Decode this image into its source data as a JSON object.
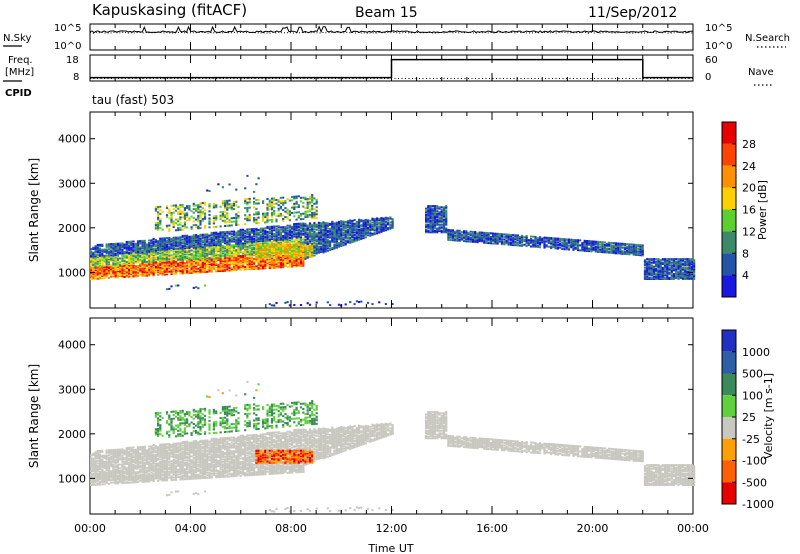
{
  "header": {
    "station": "Kapuskasing (fitACF)",
    "beam": "Beam 15",
    "date": "11/Sep/2012"
  },
  "noise_panel": {
    "left_label": "N.Sky",
    "left_ticks": [
      "10^5",
      "10^0"
    ],
    "right_label": "N.Search",
    "right_ticks": [
      "10^5",
      "10^0"
    ]
  },
  "freq_panel": {
    "left_label_1": "Freq.",
    "left_label_2": "[MHz]",
    "left_ticks": [
      "18",
      "8"
    ],
    "right_label": "Nave",
    "right_ticks": [
      "60",
      "0"
    ],
    "cpid_label": "CPID",
    "cpid_text": "tau (fast) 503"
  },
  "colors": {
    "power": [
      "#1818e0",
      "#2255a8",
      "#3c8a6a",
      "#5cd030",
      "#ffd000",
      "#ff9000",
      "#ff4400",
      "#e80000"
    ],
    "velocity": [
      "#2030c0",
      "#2e5ea6",
      "#3a8a5a",
      "#60d040",
      "#c8c8c0",
      "#ffa000",
      "#ff6000",
      "#e80000"
    ],
    "ground": "#c8c8c0"
  },
  "chart_data": [
    {
      "type": "line",
      "title": "N.Sky / N.Search",
      "x_ticks": [
        "00:00",
        "04:00",
        "08:00",
        "12:00",
        "16:00",
        "20:00",
        "00:00"
      ],
      "x_range_hours": [
        0,
        24
      ],
      "series": [
        {
          "name": "N.Sky",
          "style": "solid",
          "level_log10": 3.6
        },
        {
          "name": "N.Search",
          "style": "dotted",
          "level_log10": 3.4
        }
      ]
    },
    {
      "type": "line",
      "title": "Freq. / Nave",
      "x_range_hours": [
        0,
        24
      ],
      "series": [
        {
          "name": "Nave",
          "style": "solid",
          "x": [
            0,
            12,
            12,
            22,
            22,
            24
          ],
          "y": [
            9,
            9,
            16.5,
            16.5,
            9,
            9
          ]
        },
        {
          "name": "Freq.",
          "style": "dotted",
          "x": [
            0,
            24
          ],
          "y": [
            8.6,
            8.6
          ]
        }
      ],
      "left_ylim": [
        8,
        18
      ]
    },
    {
      "type": "heatmap",
      "quantity": "Power",
      "ylabel": "Slant Range [km]",
      "colorbar_label": "Power [dB]",
      "colorbar_ticks": [
        "4",
        "8",
        "12",
        "16",
        "20",
        "24",
        "28"
      ],
      "y_ticks": [
        "1000",
        "2000",
        "3000",
        "4000"
      ],
      "ylim": [
        200,
        4600
      ],
      "x_range_hours": [
        0,
        24
      ],
      "legend": "right"
    },
    {
      "type": "heatmap",
      "quantity": "Velocity",
      "ylabel": "Slant Range [km]",
      "colorbar_label": "Velocity [m s-1]",
      "colorbar_ticks": [
        "1000",
        "500",
        "100",
        "25",
        "-25",
        "-100",
        "-500",
        "-1000"
      ],
      "y_ticks": [
        "1000",
        "2000",
        "3000",
        "4000"
      ],
      "ylim": [
        200,
        4600
      ],
      "x_ticks": [
        "00:00",
        "04:00",
        "08:00",
        "12:00",
        "16:00",
        "20:00",
        "00:00"
      ],
      "x_range_hours": [
        0,
        24
      ],
      "xlabel": "Time UT",
      "legend": "right"
    }
  ]
}
